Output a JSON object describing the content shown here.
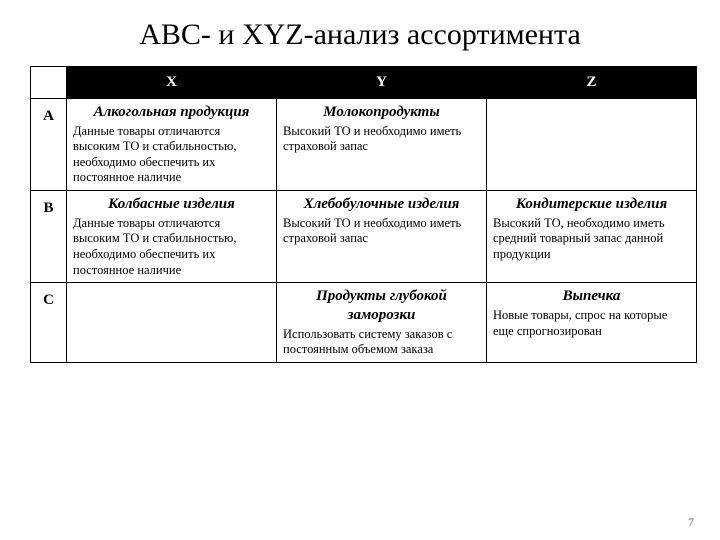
{
  "title": "ABC- и XYZ-анализ ассортимента",
  "page_number": "7",
  "columns": {
    "x": "X",
    "y": "Y",
    "z": "Z"
  },
  "rows": {
    "a": {
      "label": "A",
      "x": {
        "title": "Алкогольная продукция",
        "desc": "Данные товары отличаются высоким ТО и стабильностью, необходимо обеспечить их постоянное наличие"
      },
      "y": {
        "title": "Молокопродукты",
        "desc": "Высокий ТО и необходимо иметь страховой запас"
      },
      "z": {
        "title": "",
        "desc": ""
      }
    },
    "b": {
      "label": "B",
      "x": {
        "title": "Колбасные изделия",
        "desc": "Данные товары отличаются высоким ТО и стабильностью, необходимо обеспечить их постоянное наличие"
      },
      "y": {
        "title": "Хлебобулочные изделия",
        "desc": "Высокий ТО и необходимо иметь страховой запас"
      },
      "z": {
        "title": "Кондитерские изделия",
        "desc": "Высокий ТО, необходимо иметь средний товарный запас данной продукции"
      }
    },
    "c": {
      "label": "C",
      "x": {
        "title": "",
        "desc": ""
      },
      "y": {
        "title": "Продукты глубокой заморозки",
        "desc": "Использовать систему заказов с постоянным объемом заказа"
      },
      "z": {
        "title": "Выпечка",
        "desc": "Новые товары, спрос на которые еще спрогнозирован"
      }
    }
  },
  "style": {
    "type": "table",
    "background_color": "#ffffff",
    "text_color": "#000000",
    "header_bg": "#000000",
    "header_fg": "#ffffff",
    "border_color": "#000000",
    "title_fontsize": 30,
    "header_fontsize": 15,
    "cell_title_fontsize": 15,
    "cell_desc_fontsize": 12.5,
    "font_family": "Times New Roman"
  }
}
